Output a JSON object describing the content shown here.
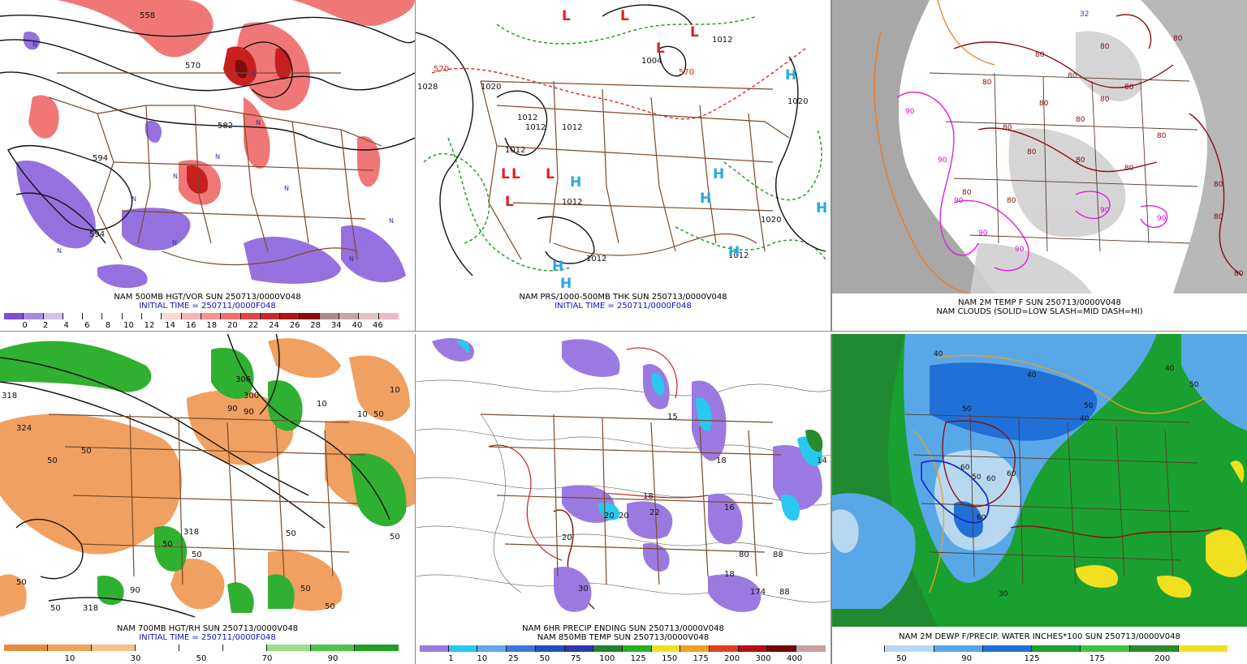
{
  "panels": [
    {
      "id": "p1",
      "caption1": "NAM 500MB HGT/VOR SUN 250713/0000V048",
      "caption2": "INITIAL TIME = 250711/0000F048",
      "map_labels": [
        "558",
        "570",
        "582",
        "594",
        "594",
        "N",
        "N",
        "N",
        "N",
        "N",
        "N",
        "N",
        "N",
        "N",
        "N",
        "N"
      ],
      "colorbar": {
        "colors": [
          "#7a4fd6",
          "#a98ae6",
          "#d0c2f2",
          "#ffffff",
          "#ffffff",
          "#ffffff",
          "#ffffff",
          "#ffffff",
          "#ffd6d6",
          "#ffb3b3",
          "#ff8f8f",
          "#f06c6c",
          "#e04848",
          "#c42c2c",
          "#a51818",
          "#8a0c0c",
          "#b08a8a",
          "#c8a4a4",
          "#e0c0c0",
          "#f2b8c8"
        ],
        "ticks": [
          "0",
          "2",
          "4",
          "6",
          "8",
          "10",
          "12",
          "14",
          "16",
          "18",
          "20",
          "22",
          "24",
          "26",
          "28",
          "34",
          "40",
          "46"
        ]
      }
    },
    {
      "id": "p2",
      "caption1": "NAM PRS/1000-500MB THK SUN 250713/0000V048",
      "caption2": "INITIAL TIME = 250711/0000F048",
      "map_labels": [
        "1028",
        "1020",
        "1012",
        "1012",
        "1012",
        "1012",
        "1012",
        "1004",
        "1012",
        "1020",
        "1020",
        "1012",
        "1012",
        "570",
        "570"
      ],
      "highs": [
        "H",
        "H",
        "H",
        "H",
        "H",
        "H",
        "H",
        "H"
      ],
      "lows": [
        "L",
        "L",
        "L",
        "L",
        "L",
        "L",
        "L",
        "L"
      ],
      "colors": {
        "high": "#28a8e0",
        "low": "#e02020"
      }
    },
    {
      "id": "p3",
      "caption1": "NAM 2M TEMP F SUN 250713/0000V048",
      "caption2": "NAM CLOUDS (SOLID=LOW SLASH=MID DASH=HI)",
      "map_labels": [
        "80",
        "80",
        "80",
        "80",
        "80",
        "80",
        "80",
        "80",
        "80",
        "80",
        "90",
        "90",
        "90",
        "90",
        "90",
        "90",
        "90",
        "80",
        "80",
        "80",
        "80",
        "80",
        "80",
        "80",
        "80",
        "80",
        "32"
      ]
    },
    {
      "id": "p4",
      "caption1": "NAM 700MB HGT/RH SUN 250713/0000V048",
      "caption2": "INITIAL TIME = 250711/0000F048",
      "map_labels": [
        "318",
        "324",
        "306",
        "300",
        "90",
        "50",
        "50",
        "50",
        "10",
        "10",
        "10",
        "50",
        "50",
        "50",
        "50",
        "50",
        "50",
        "50",
        "318",
        "318",
        "90",
        "90",
        "50"
      ],
      "colorbar": {
        "colors": [
          "#e88a3c",
          "#f0a25a",
          "#f6c08a",
          "#ffffff",
          "#ffffff",
          "#ffffff",
          "#9ae08a",
          "#4cc448",
          "#20a020"
        ],
        "ticks": [
          "10",
          "30",
          "50",
          "70",
          "90"
        ]
      }
    },
    {
      "id": "p5",
      "caption1": "NAM 6HR PRECIP ENDING SUN 250713/0000V048",
      "caption2": "NAM 850MB TEMP SUN 250713/0000V048",
      "map_labels": [
        "20",
        "20",
        "22",
        "16",
        "20",
        "30",
        "18",
        "18",
        "18",
        "15",
        "80",
        "88",
        "88",
        "174",
        "14"
      ],
      "colorbar": {
        "colors": [
          "#9a7ae0",
          "#28c8f0",
          "#60a8e8",
          "#3a78d8",
          "#2050c0",
          "#2a38a8",
          "#208030",
          "#28b028",
          "#f0e020",
          "#f0a020",
          "#e04020",
          "#b01010",
          "#700808",
          "#c8a0a0"
        ],
        "ticks": [
          "1",
          "10",
          "25",
          "50",
          "75",
          "100",
          "125",
          "150",
          "175",
          "200",
          "300",
          "400"
        ]
      }
    },
    {
      "id": "p6",
      "caption1": "NAM 2M DEWP F/PRECIP. WATER INCHES*100 SUN 250713/0000V048",
      "map_labels": [
        "40",
        "40",
        "50",
        "40",
        "50",
        "60",
        "50",
        "60",
        "60",
        "60",
        "40",
        "50",
        "30"
      ],
      "colorbar": {
        "colors": [
          "#ffffff",
          "#b8d8f0",
          "#58a8e8",
          "#2070d8",
          "#1aa030",
          "#40c040",
          "#2a8a2a",
          "#f0e020"
        ],
        "ticks": [
          "50",
          "90",
          "125",
          "175",
          "200"
        ]
      }
    }
  ]
}
